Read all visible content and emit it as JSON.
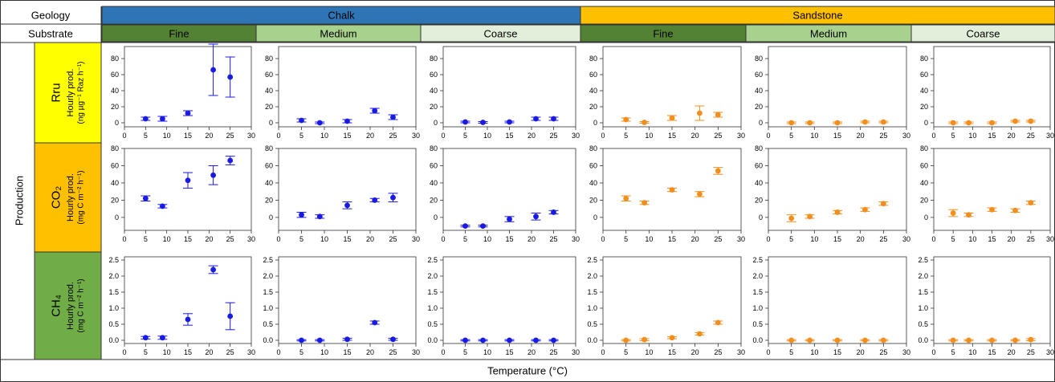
{
  "header": {
    "geology_label": "Geology",
    "substrate_label": "Substrate",
    "geologies": [
      {
        "name": "Chalk",
        "color": "#2E75B6"
      },
      {
        "name": "Sandstone",
        "color": "#FFC000"
      }
    ],
    "substrates": [
      {
        "name": "Fine",
        "color": "#548235"
      },
      {
        "name": "Medium",
        "color": "#A9D18E"
      },
      {
        "name": "Coarse",
        "color": "#E2EFDA"
      }
    ]
  },
  "row_group_label": "Production",
  "rows": [
    {
      "id": "rru",
      "color": "#FFFF00",
      "lines": [
        "Rru",
        "Hourly prod.",
        "(ng µg⁻¹ Raz h⁻¹)"
      ]
    },
    {
      "id": "co2",
      "color": "#FFC000",
      "lines": [
        "CO₂",
        "Hourly prod.",
        "(mg C m⁻² h⁻¹)"
      ]
    },
    {
      "id": "ch4",
      "color": "#70AD47",
      "lines": [
        "CH₄",
        "Hourly prod.",
        "(mg C m⁻² h⁻¹)"
      ]
    }
  ],
  "x_axis_label": "Temperature (°C)",
  "chart_data": {
    "type": "scatter",
    "x": [
      5,
      9,
      15,
      21,
      25
    ],
    "xlim": [
      0,
      30
    ],
    "xticks": [
      0,
      5,
      10,
      15,
      20,
      25,
      30
    ],
    "xlabel": "Temperature (°C)",
    "series_colors": {
      "Chalk": "#1A1AE6",
      "Sandstone": "#F28E1C"
    },
    "panels": {
      "rru": {
        "ylim": [
          -5,
          95
        ],
        "yticks": [
          0,
          20,
          40,
          60,
          80
        ],
        "Chalk": {
          "Fine": {
            "y": [
              5,
              5,
              12,
              66,
              57
            ],
            "err": [
              2,
              3,
              3,
              32,
              25
            ]
          },
          "Medium": {
            "y": [
              3,
              0,
              2,
              15,
              7
            ],
            "err": [
              2,
              1,
              2,
              3,
              3
            ]
          },
          "Coarse": {
            "y": [
              1,
              0.5,
              1,
              5,
              5
            ],
            "err": [
              1,
              1,
              1,
              2,
              2
            ]
          }
        },
        "Sandstone": {
          "Fine": {
            "y": [
              4,
              0.5,
              6,
              12,
              10
            ],
            "err": [
              2,
              1,
              3,
              9,
              3
            ]
          },
          "Medium": {
            "y": [
              0,
              0,
              0,
              1,
              1
            ],
            "err": [
              1,
              1,
              1,
              1,
              1
            ]
          },
          "Coarse": {
            "y": [
              0,
              0,
              0,
              2,
              2
            ],
            "err": [
              1,
              1,
              1,
              1,
              1
            ]
          }
        }
      },
      "co2": {
        "ylim": [
          -15,
          80
        ],
        "yticks": [
          0,
          20,
          40,
          60,
          80
        ],
        "Chalk": {
          "Fine": {
            "y": [
              22,
              13,
              43,
              49,
              66
            ],
            "err": [
              3,
              2,
              9,
              11,
              5
            ]
          },
          "Medium": {
            "y": [
              3,
              1,
              14,
              20,
              23
            ],
            "err": [
              3,
              2,
              4,
              2,
              5
            ]
          },
          "Coarse": {
            "y": [
              -10,
              -10,
              -2,
              1,
              6
            ],
            "err": [
              1,
              1,
              3,
              4,
              2
            ]
          }
        },
        "Sandstone": {
          "Fine": {
            "y": [
              22,
              17,
              32,
              27,
              54
            ],
            "err": [
              3,
              2,
              2,
              3,
              4
            ]
          },
          "Medium": {
            "y": [
              -1,
              1,
              6,
              9,
              16
            ],
            "err": [
              4,
              2,
              2,
              2,
              2
            ]
          },
          "Coarse": {
            "y": [
              5,
              3,
              9,
              8,
              17
            ],
            "err": [
              4,
              2,
              2,
              2,
              2
            ]
          }
        }
      },
      "ch4": {
        "ylim": [
          -0.1,
          2.6
        ],
        "yticks": [
          0,
          0.5,
          1.0,
          1.5,
          2.0,
          2.5
        ],
        "Chalk": {
          "Fine": {
            "y": [
              0.08,
              0.08,
              0.65,
              2.2,
              0.75
            ],
            "err": [
              0.04,
              0.05,
              0.18,
              0.12,
              0.42
            ]
          },
          "Medium": {
            "y": [
              0.0,
              0.0,
              0.03,
              0.55,
              0.03
            ],
            "err": [
              0.02,
              0.02,
              0.03,
              0.05,
              0.03
            ]
          },
          "Coarse": {
            "y": [
              0.0,
              0.0,
              0.0,
              0.0,
              0.0
            ],
            "err": [
              0.02,
              0.02,
              0.02,
              0.02,
              0.02
            ]
          }
        },
        "Sandstone": {
          "Fine": {
            "y": [
              0.0,
              0.02,
              0.08,
              0.2,
              0.55
            ],
            "err": [
              0.02,
              0.03,
              0.03,
              0.04,
              0.05
            ]
          },
          "Medium": {
            "y": [
              0.0,
              0.0,
              0.0,
              0.0,
              0.0
            ],
            "err": [
              0.02,
              0.02,
              0.02,
              0.02,
              0.02
            ]
          },
          "Coarse": {
            "y": [
              0.0,
              0.0,
              0.0,
              0.0,
              0.02
            ],
            "err": [
              0.02,
              0.02,
              0.02,
              0.02,
              0.03
            ]
          }
        }
      }
    }
  }
}
